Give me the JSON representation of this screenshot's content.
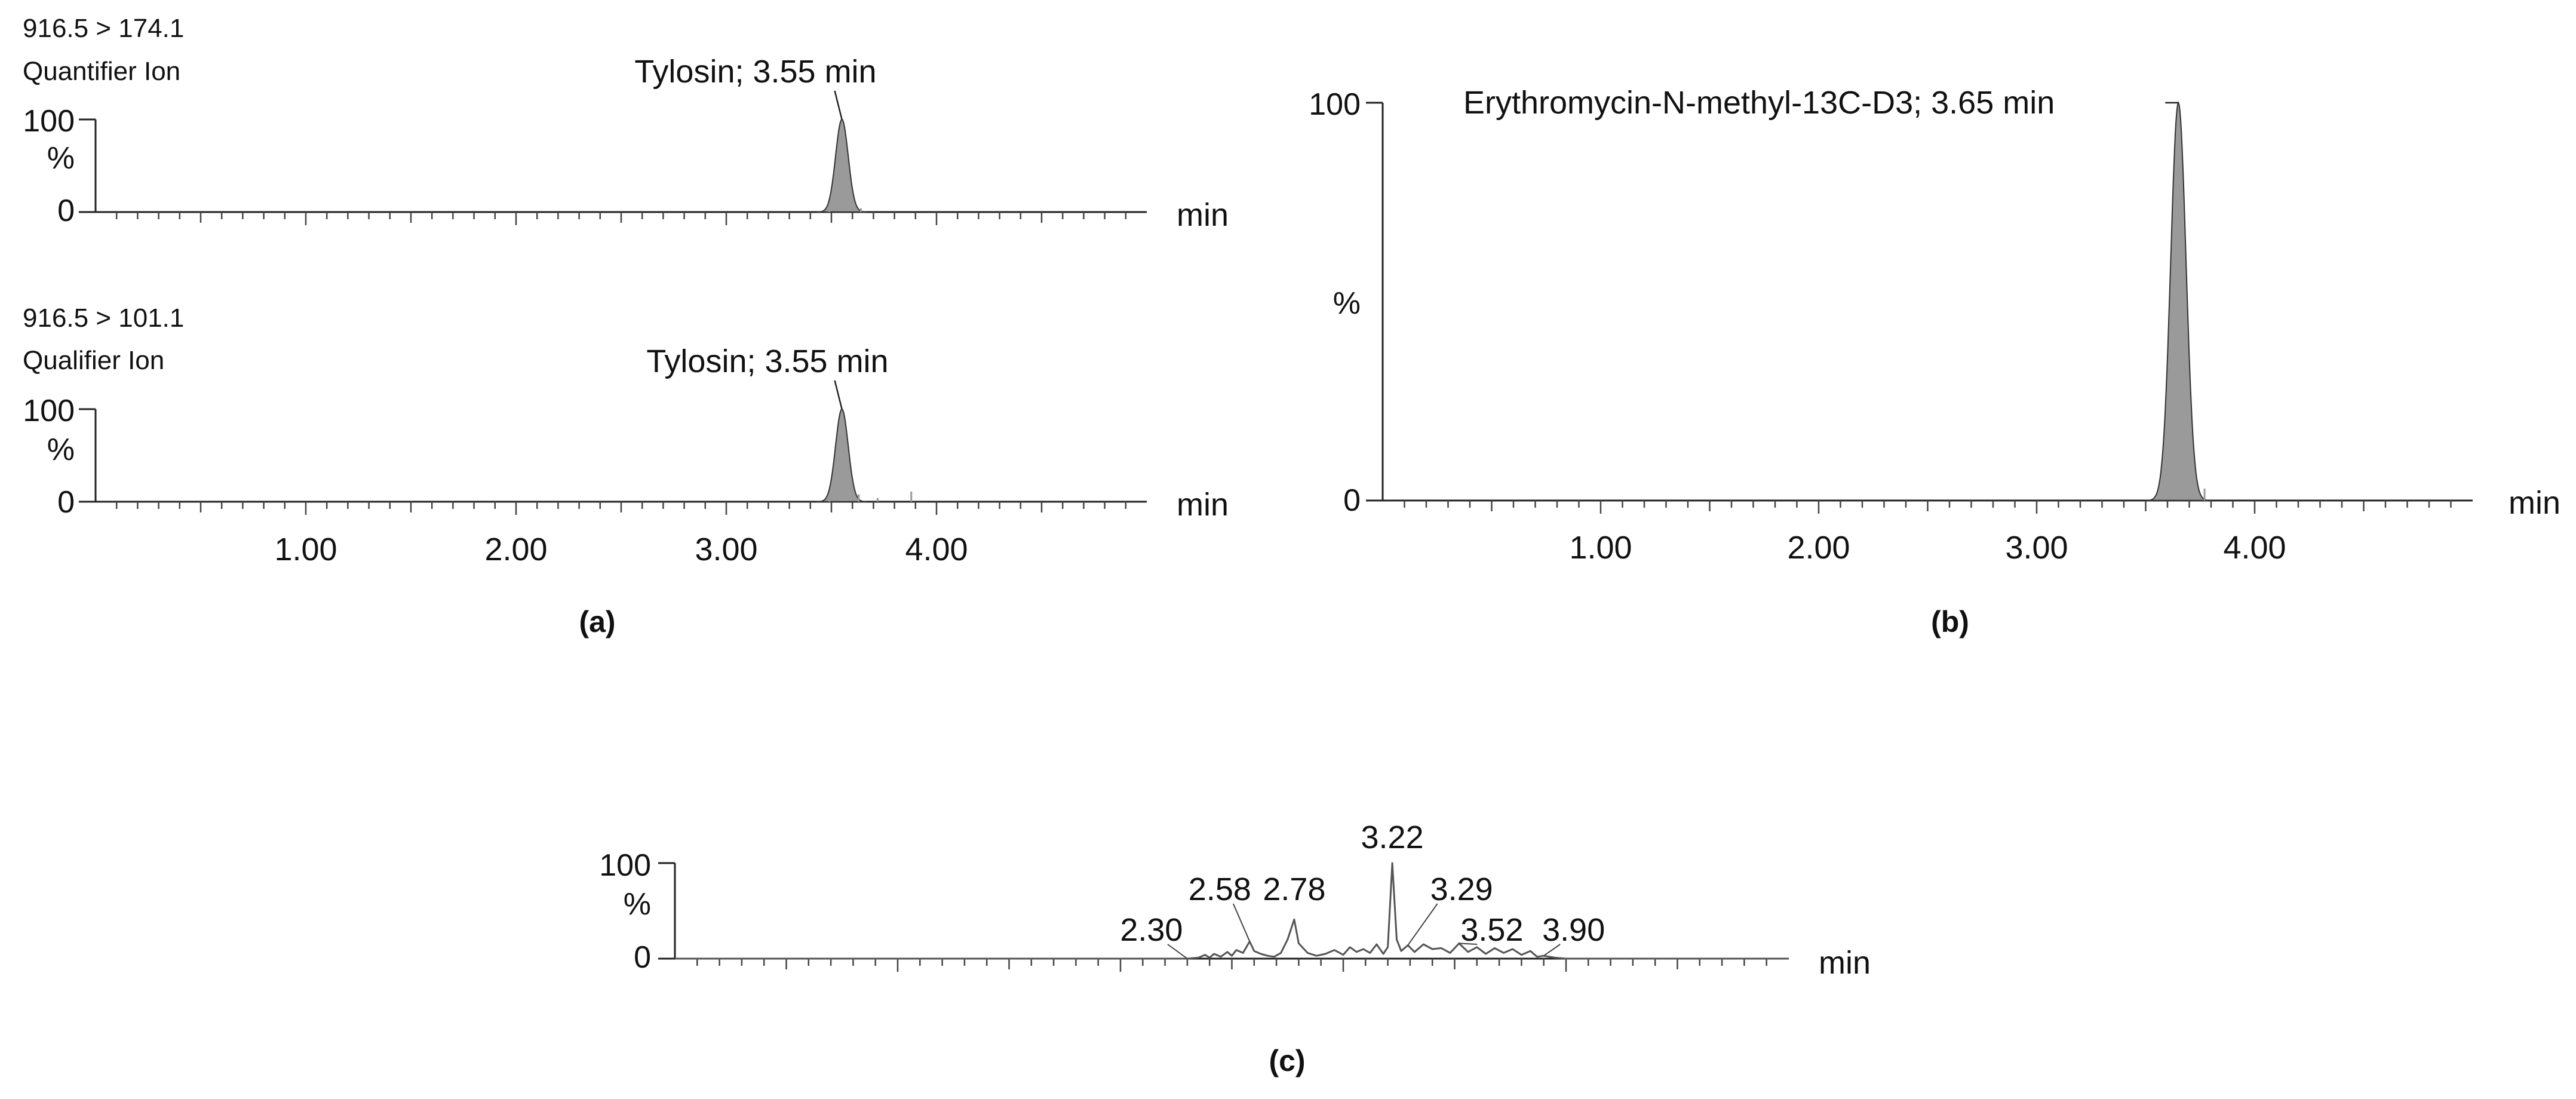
{
  "chart_data": [
    {
      "panel": "a",
      "type": "line",
      "panel_label": "(a)",
      "xlim": [
        0,
        5
      ],
      "ylim": [
        0,
        100
      ],
      "x_unit": "min",
      "x_tick_labels": [
        "1.00",
        "2.00",
        "3.00",
        "4.00"
      ],
      "x_tick_values": [
        1,
        2,
        3,
        4
      ],
      "fill_color": "#9a9a9a",
      "traces": [
        {
          "transition": "916.5 > 174.1",
          "ion": "Quantifier Ion",
          "y_tick_labels": [
            "100",
            "%",
            "0"
          ],
          "peaks": [
            {
              "rt": 3.55,
              "height": 100,
              "width": 0.03,
              "label": "Tylosin; 3.55 min"
            },
            {
              "rt": 3.49,
              "height": 9,
              "width": 0.004
            },
            {
              "rt": 3.64,
              "height": 4,
              "width": 0.004
            }
          ]
        },
        {
          "transition": "916.5 > 101.1",
          "ion": "Qualifier Ion",
          "y_tick_labels": [
            "100",
            "%",
            "0"
          ],
          "peaks": [
            {
              "rt": 3.55,
              "height": 100,
              "width": 0.03,
              "label": "Tylosin; 3.55 min"
            },
            {
              "rt": 3.49,
              "height": 7,
              "width": 0.004
            },
            {
              "rt": 3.63,
              "height": 8,
              "width": 0.004
            },
            {
              "rt": 3.72,
              "height": 4,
              "width": 0.004
            },
            {
              "rt": 3.88,
              "height": 11,
              "width": 0.004
            }
          ]
        }
      ]
    },
    {
      "panel": "b",
      "type": "line",
      "panel_label": "(b)",
      "xlim": [
        0,
        5
      ],
      "ylim": [
        0,
        100
      ],
      "x_unit": "min",
      "x_tick_labels": [
        "1.00",
        "2.00",
        "3.00",
        "4.00"
      ],
      "x_tick_values": [
        1,
        2,
        3,
        4
      ],
      "y_tick_labels": [
        "100",
        "%",
        "0"
      ],
      "fill_color": "#9a9a9a",
      "peaks": [
        {
          "rt": 3.65,
          "height": 100,
          "width": 0.035,
          "label": "Erythromycin-N-methyl-13C-D3; 3.65 min"
        },
        {
          "rt": 3.77,
          "height": 3,
          "width": 0.004
        }
      ]
    },
    {
      "panel": "c",
      "type": "line",
      "panel_label": "(c)",
      "xlim": [
        0,
        5
      ],
      "ylim": [
        0,
        100
      ],
      "x_unit": "min",
      "y_tick_labels": [
        "100",
        "%",
        "0"
      ],
      "line_color": "#555555",
      "peak_labels": [
        {
          "rt": 2.3,
          "text": "2.30"
        },
        {
          "rt": 2.58,
          "text": "2.58"
        },
        {
          "rt": 2.78,
          "text": "2.78"
        },
        {
          "rt": 3.22,
          "text": "3.22"
        },
        {
          "rt": 3.29,
          "text": "3.29"
        },
        {
          "rt": 3.52,
          "text": "3.52"
        },
        {
          "rt": 3.9,
          "text": "3.90"
        }
      ],
      "trace": {
        "x": [
          0,
          2.2,
          2.3,
          2.35,
          2.38,
          2.4,
          2.42,
          2.45,
          2.48,
          2.5,
          2.52,
          2.55,
          2.58,
          2.6,
          2.63,
          2.66,
          2.69,
          2.72,
          2.75,
          2.78,
          2.8,
          2.84,
          2.88,
          2.92,
          2.96,
          3.0,
          3.03,
          3.06,
          3.09,
          3.12,
          3.15,
          3.18,
          3.2,
          3.22,
          3.24,
          3.26,
          3.29,
          3.32,
          3.36,
          3.4,
          3.44,
          3.48,
          3.52,
          3.56,
          3.6,
          3.64,
          3.68,
          3.72,
          3.76,
          3.8,
          3.84,
          3.87,
          3.9,
          3.95,
          4.0,
          5.0
        ],
        "y": [
          0,
          0,
          0,
          1,
          4,
          1,
          5,
          2,
          7,
          3,
          9,
          6,
          18,
          8,
          5,
          3,
          2,
          6,
          20,
          41,
          16,
          6,
          3,
          5,
          9,
          4,
          12,
          7,
          10,
          6,
          15,
          5,
          12,
          100,
          20,
          8,
          14,
          7,
          15,
          10,
          11,
          6,
          16,
          7,
          12,
          5,
          11,
          6,
          10,
          4,
          8,
          2,
          3,
          1,
          0,
          0
        ]
      }
    }
  ]
}
